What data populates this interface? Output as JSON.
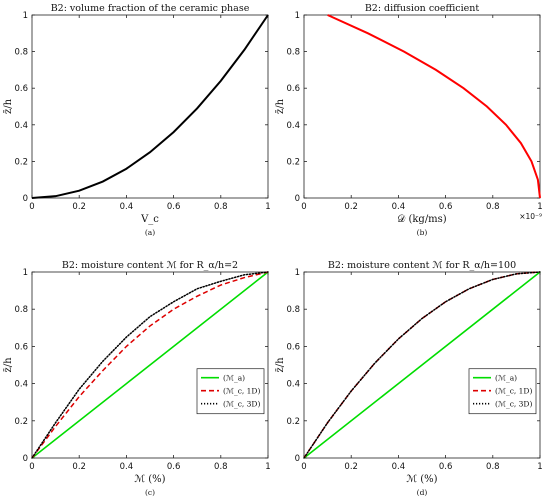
{
  "chart_data": [
    {
      "type": "line",
      "title": "B2: volume fraction of the ceramic phase",
      "xlabel": "V_c",
      "ylabel": "z̄/h",
      "xlim": [
        0,
        1
      ],
      "ylim": [
        0,
        1
      ],
      "xticks": [
        "0",
        "0.2",
        "0.4",
        "0.6",
        "0.8",
        "1"
      ],
      "yticks": [
        "0",
        "0.2",
        "0.4",
        "0.6",
        "0.8",
        "1"
      ],
      "caption": "(a)",
      "grid": false,
      "series": [
        {
          "color": "#000000",
          "style": "solid",
          "x": [
            0,
            0.1,
            0.2,
            0.3,
            0.4,
            0.5,
            0.6,
            0.7,
            0.8,
            0.9,
            1.0
          ],
          "y": [
            0,
            0.01,
            0.04,
            0.09,
            0.16,
            0.25,
            0.36,
            0.49,
            0.64,
            0.81,
            1.0
          ]
        }
      ]
    },
    {
      "type": "line",
      "title": "B2: diffusion coefficient",
      "xlabel": "𝒟 (kg/ms)",
      "ylabel": "z̄/h",
      "xlim": [
        0,
        1
      ],
      "ylim": [
        0,
        1
      ],
      "xticks": [
        "0",
        "0.2",
        "0.4",
        "0.6",
        "0.8",
        "1"
      ],
      "yticks": [
        "0",
        "0.2",
        "0.4",
        "0.6",
        "0.8",
        "1"
      ],
      "x_exponent": "×10⁻⁹",
      "caption": "(b)",
      "grid": false,
      "series": [
        {
          "color": "#ff0000",
          "style": "solid",
          "x": [
            1.0,
            0.991,
            0.964,
            0.919,
            0.856,
            0.775,
            0.676,
            0.559,
            0.424,
            0.271,
            0.1
          ],
          "y": [
            0,
            0.1,
            0.2,
            0.3,
            0.4,
            0.5,
            0.6,
            0.7,
            0.8,
            0.9,
            1.0
          ]
        }
      ]
    },
    {
      "type": "line",
      "title": "B2: moisture content ℳ for R_α/h=2",
      "xlabel": "ℳ (%)",
      "ylabel": "z̄/h",
      "xlim": [
        0,
        1
      ],
      "ylim": [
        0,
        1
      ],
      "xticks": [
        "0",
        "0.2",
        "0.4",
        "0.6",
        "0.8",
        "1"
      ],
      "yticks": [
        "0",
        "0.2",
        "0.4",
        "0.6",
        "0.8",
        "1"
      ],
      "caption": "(c)",
      "legend_position": "right-middle",
      "grid": false,
      "series": [
        {
          "name": "(ℳ_a)",
          "color": "#00dd00",
          "style": "solid",
          "x": [
            0,
            1
          ],
          "y": [
            0,
            1
          ]
        },
        {
          "name": "(ℳ_c, 1D)",
          "color": "#dd0000",
          "style": "dashed",
          "x": [
            0,
            0.1,
            0.2,
            0.3,
            0.4,
            0.5,
            0.6,
            0.7,
            0.8,
            0.9,
            1.0
          ],
          "y": [
            0,
            0.17,
            0.33,
            0.47,
            0.6,
            0.71,
            0.8,
            0.87,
            0.93,
            0.97,
            1.0
          ]
        },
        {
          "name": "(ℳ_c, 3D)",
          "color": "#000000",
          "style": "dotted",
          "x": [
            0,
            0.1,
            0.2,
            0.3,
            0.4,
            0.5,
            0.6,
            0.7,
            0.8,
            0.9,
            1.0
          ],
          "y": [
            0,
            0.19,
            0.37,
            0.52,
            0.65,
            0.76,
            0.84,
            0.91,
            0.95,
            0.985,
            1.0
          ]
        }
      ]
    },
    {
      "type": "line",
      "title": "B2: moisture content ℳ for R_α/h=100",
      "xlabel": "ℳ (%)",
      "ylabel": "z̄/h",
      "xlim": [
        0,
        1
      ],
      "ylim": [
        0,
        1
      ],
      "xticks": [
        "0",
        "0.2",
        "0.4",
        "0.6",
        "0.8",
        "1"
      ],
      "yticks": [
        "0",
        "0.2",
        "0.4",
        "0.6",
        "0.8",
        "1"
      ],
      "caption": "(d)",
      "legend_position": "right-middle",
      "grid": false,
      "series": [
        {
          "name": "(ℳ_a)",
          "color": "#00dd00",
          "style": "solid",
          "x": [
            0,
            1
          ],
          "y": [
            0,
            1
          ]
        },
        {
          "name": "(ℳ_c, 1D)",
          "color": "#dd0000",
          "style": "dashed",
          "x": [
            0,
            0.1,
            0.2,
            0.3,
            0.4,
            0.5,
            0.6,
            0.7,
            0.8,
            0.9,
            1.0
          ],
          "y": [
            0,
            0.19,
            0.36,
            0.51,
            0.64,
            0.75,
            0.84,
            0.91,
            0.96,
            0.99,
            1.0
          ]
        },
        {
          "name": "(ℳ_c, 3D)",
          "color": "#000000",
          "style": "dotted",
          "x": [
            0,
            0.1,
            0.2,
            0.3,
            0.4,
            0.5,
            0.6,
            0.7,
            0.8,
            0.9,
            1.0
          ],
          "y": [
            0,
            0.19,
            0.36,
            0.51,
            0.64,
            0.75,
            0.84,
            0.91,
            0.96,
            0.99,
            1.0
          ]
        }
      ]
    }
  ]
}
